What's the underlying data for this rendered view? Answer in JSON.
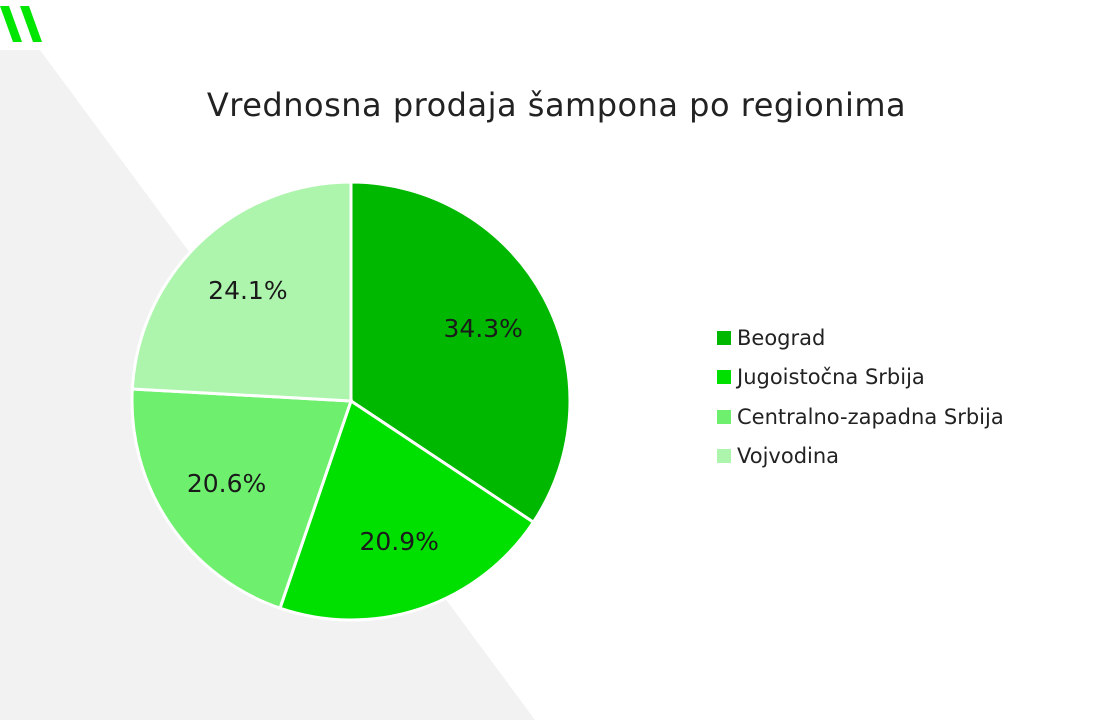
{
  "colors": {
    "background": "#ffffff",
    "bg_shape": "#f2f2f2",
    "logo": "#00e600",
    "slice_border": "#ffffff"
  },
  "chart_data": {
    "type": "pie",
    "title": "Vrednosna prodaja šampona po regionima",
    "slices": [
      {
        "label": "Beograd",
        "value": 34.3,
        "value_label": "34.3%",
        "color": "#00b800"
      },
      {
        "label": "Jugoistočna Srbija",
        "value": 20.9,
        "value_label": "20.9%",
        "color": "#00e000"
      },
      {
        "label": "Centralno-zapadna Srbija",
        "value": 20.6,
        "value_label": "20.6%",
        "color": "#6ef06e"
      },
      {
        "label": "Vojvodina",
        "value": 24.1,
        "value_label": "24.1%",
        "color": "#adf5ad"
      }
    ],
    "legend_position": "right"
  }
}
